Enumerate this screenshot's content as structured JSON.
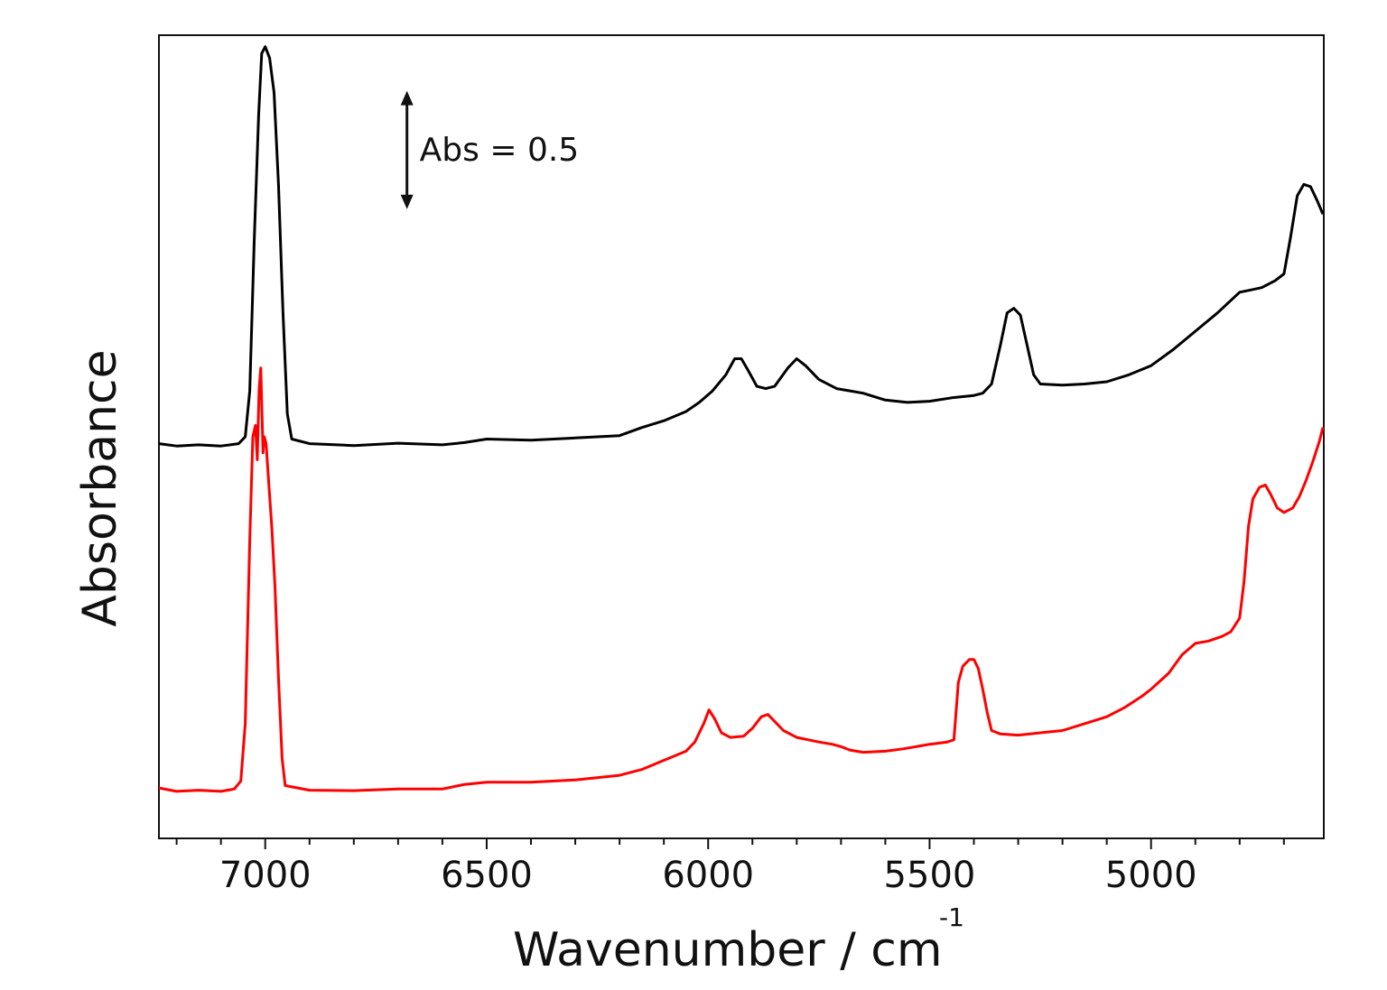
{
  "chart_data": {
    "type": "line",
    "xlabel": "Wavenumber / cm",
    "xlabel_superscript": "-1",
    "ylabel": "Absorbance",
    "xlim": [
      7240,
      4610
    ],
    "x_reversed": true,
    "ylim": [
      0,
      3.5
    ],
    "y_ticks_shown": false,
    "x_ticks": [
      7000,
      6500,
      6000,
      5500,
      5000
    ],
    "x_minor_step": 100,
    "grid": false,
    "legend": "none",
    "annotation": {
      "text": "Abs = 0.5",
      "bar_from": 2.75,
      "bar_to": 3.25,
      "x": 6680
    },
    "series": [
      {
        "color": "#000000",
        "points": [
          [
            7240,
            1.72
          ],
          [
            7200,
            1.71
          ],
          [
            7150,
            1.715
          ],
          [
            7100,
            1.71
          ],
          [
            7060,
            1.72
          ],
          [
            7045,
            1.75
          ],
          [
            7035,
            1.95
          ],
          [
            7025,
            2.6
          ],
          [
            7015,
            3.15
          ],
          [
            7008,
            3.42
          ],
          [
            7000,
            3.45
          ],
          [
            6990,
            3.4
          ],
          [
            6980,
            3.25
          ],
          [
            6970,
            2.85
          ],
          [
            6960,
            2.3
          ],
          [
            6950,
            1.85
          ],
          [
            6940,
            1.74
          ],
          [
            6900,
            1.72
          ],
          [
            6800,
            1.712
          ],
          [
            6700,
            1.722
          ],
          [
            6600,
            1.715
          ],
          [
            6550,
            1.725
          ],
          [
            6500,
            1.74
          ],
          [
            6400,
            1.735
          ],
          [
            6300,
            1.745
          ],
          [
            6200,
            1.755
          ],
          [
            6150,
            1.79
          ],
          [
            6100,
            1.82
          ],
          [
            6050,
            1.86
          ],
          [
            6020,
            1.9
          ],
          [
            5990,
            1.95
          ],
          [
            5960,
            2.02
          ],
          [
            5940,
            2.09
          ],
          [
            5925,
            2.09
          ],
          [
            5910,
            2.04
          ],
          [
            5890,
            1.97
          ],
          [
            5870,
            1.96
          ],
          [
            5850,
            1.97
          ],
          [
            5820,
            2.05
          ],
          [
            5800,
            2.09
          ],
          [
            5780,
            2.06
          ],
          [
            5750,
            2.0
          ],
          [
            5710,
            1.96
          ],
          [
            5680,
            1.95
          ],
          [
            5650,
            1.94
          ],
          [
            5600,
            1.91
          ],
          [
            5550,
            1.9
          ],
          [
            5500,
            1.905
          ],
          [
            5450,
            1.92
          ],
          [
            5400,
            1.93
          ],
          [
            5380,
            1.94
          ],
          [
            5360,
            1.98
          ],
          [
            5340,
            2.15
          ],
          [
            5325,
            2.29
          ],
          [
            5310,
            2.31
          ],
          [
            5295,
            2.28
          ],
          [
            5280,
            2.15
          ],
          [
            5265,
            2.02
          ],
          [
            5250,
            1.98
          ],
          [
            5200,
            1.975
          ],
          [
            5150,
            1.98
          ],
          [
            5100,
            1.99
          ],
          [
            5050,
            2.02
          ],
          [
            5000,
            2.06
          ],
          [
            4950,
            2.13
          ],
          [
            4900,
            2.21
          ],
          [
            4850,
            2.29
          ],
          [
            4800,
            2.38
          ],
          [
            4775,
            2.39
          ],
          [
            4750,
            2.4
          ],
          [
            4720,
            2.43
          ],
          [
            4700,
            2.46
          ],
          [
            4685,
            2.62
          ],
          [
            4670,
            2.8
          ],
          [
            4655,
            2.85
          ],
          [
            4640,
            2.84
          ],
          [
            4625,
            2.78
          ],
          [
            4612,
            2.72
          ]
        ]
      },
      {
        "color": "#ff0000",
        "points": [
          [
            7240,
            0.22
          ],
          [
            7200,
            0.205
          ],
          [
            7150,
            0.21
          ],
          [
            7100,
            0.205
          ],
          [
            7070,
            0.215
          ],
          [
            7055,
            0.25
          ],
          [
            7045,
            0.5
          ],
          [
            7035,
            1.3
          ],
          [
            7028,
            1.75
          ],
          [
            7022,
            1.8
          ],
          [
            7018,
            1.65
          ],
          [
            7014,
            1.95
          ],
          [
            7012,
            2.0
          ],
          [
            7010,
            2.05
          ],
          [
            7008,
            1.9
          ],
          [
            7005,
            1.68
          ],
          [
            7002,
            1.75
          ],
          [
            6998,
            1.72
          ],
          [
            6992,
            1.55
          ],
          [
            6985,
            1.35
          ],
          [
            6978,
            1.1
          ],
          [
            6970,
            0.7
          ],
          [
            6962,
            0.35
          ],
          [
            6955,
            0.23
          ],
          [
            6900,
            0.21
          ],
          [
            6800,
            0.208
          ],
          [
            6700,
            0.215
          ],
          [
            6600,
            0.215
          ],
          [
            6550,
            0.235
          ],
          [
            6500,
            0.245
          ],
          [
            6400,
            0.245
          ],
          [
            6300,
            0.255
          ],
          [
            6200,
            0.275
          ],
          [
            6150,
            0.3
          ],
          [
            6100,
            0.34
          ],
          [
            6050,
            0.38
          ],
          [
            6030,
            0.42
          ],
          [
            6010,
            0.5
          ],
          [
            5998,
            0.56
          ],
          [
            5985,
            0.52
          ],
          [
            5970,
            0.46
          ],
          [
            5950,
            0.44
          ],
          [
            5920,
            0.445
          ],
          [
            5900,
            0.48
          ],
          [
            5880,
            0.53
          ],
          [
            5865,
            0.54
          ],
          [
            5850,
            0.51
          ],
          [
            5830,
            0.47
          ],
          [
            5800,
            0.44
          ],
          [
            5750,
            0.42
          ],
          [
            5720,
            0.41
          ],
          [
            5700,
            0.4
          ],
          [
            5680,
            0.385
          ],
          [
            5650,
            0.375
          ],
          [
            5600,
            0.38
          ],
          [
            5560,
            0.39
          ],
          [
            5530,
            0.4
          ],
          [
            5500,
            0.41
          ],
          [
            5460,
            0.42
          ],
          [
            5445,
            0.43
          ],
          [
            5435,
            0.68
          ],
          [
            5425,
            0.75
          ],
          [
            5410,
            0.78
          ],
          [
            5400,
            0.78
          ],
          [
            5390,
            0.74
          ],
          [
            5380,
            0.65
          ],
          [
            5370,
            0.55
          ],
          [
            5360,
            0.47
          ],
          [
            5340,
            0.455
          ],
          [
            5300,
            0.45
          ],
          [
            5250,
            0.46
          ],
          [
            5200,
            0.47
          ],
          [
            5150,
            0.5
          ],
          [
            5100,
            0.53
          ],
          [
            5060,
            0.57
          ],
          [
            5020,
            0.62
          ],
          [
            5000,
            0.65
          ],
          [
            4960,
            0.72
          ],
          [
            4930,
            0.8
          ],
          [
            4900,
            0.85
          ],
          [
            4870,
            0.86
          ],
          [
            4840,
            0.88
          ],
          [
            4820,
            0.9
          ],
          [
            4800,
            0.96
          ],
          [
            4790,
            1.12
          ],
          [
            4780,
            1.36
          ],
          [
            4770,
            1.48
          ],
          [
            4755,
            1.53
          ],
          [
            4742,
            1.54
          ],
          [
            4730,
            1.5
          ],
          [
            4715,
            1.44
          ],
          [
            4700,
            1.42
          ],
          [
            4680,
            1.44
          ],
          [
            4665,
            1.49
          ],
          [
            4650,
            1.56
          ],
          [
            4635,
            1.64
          ],
          [
            4620,
            1.73
          ],
          [
            4612,
            1.79
          ]
        ]
      }
    ]
  }
}
